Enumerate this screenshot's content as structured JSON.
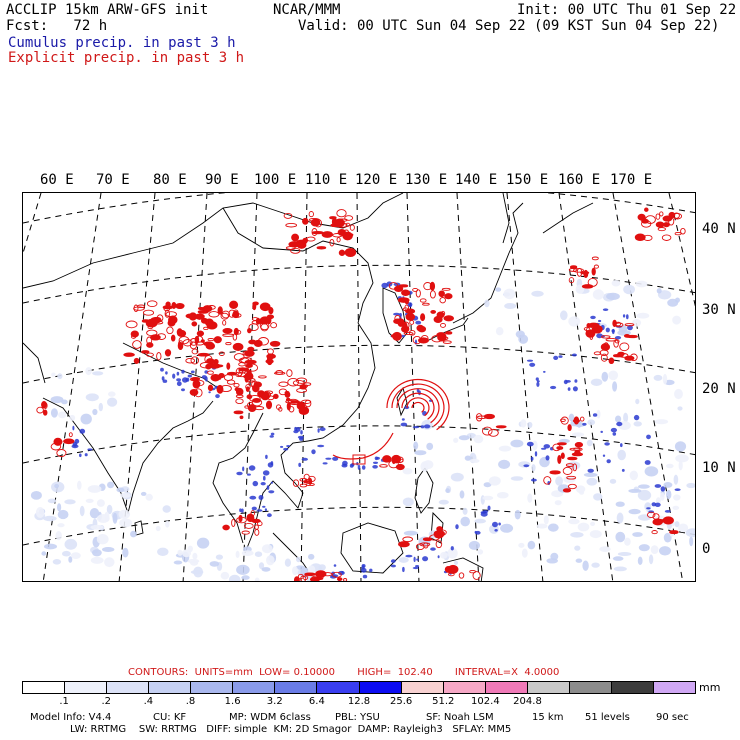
{
  "header": {
    "model": "ACCLIP 15km ARW-GFS init",
    "org": "NCAR/MMM",
    "init": "Init: 00 UTC Thu 01 Sep 22",
    "fcst": "Fcst:   72 h",
    "valid": "Valid: 00 UTC Sun 04 Sep 22 (09 KST Sun 04 Sep 22)",
    "cumulus_label": "Cumulus precip. in past 3 h",
    "explicit_label": "Explicit precip. in past 3 h"
  },
  "map": {
    "lon_labels": [
      "60 E",
      "70 E",
      "80 E",
      "90 E",
      "100 E",
      "110 E",
      "120 E",
      "130 E",
      "140 E",
      "150 E",
      "160 E",
      "170 E"
    ],
    "lat_labels": [
      "40 N",
      "30 N",
      "20 N",
      "10 N",
      "0"
    ],
    "colors": {
      "cumulus": "#2a3ad0",
      "explicit": "#e01010",
      "coast": "#000000",
      "grid": "#000000"
    }
  },
  "contours": {
    "text": "CONTOURS:  UNITS=mm  LOW= 0.10000       HIGH=  102.40       INTERVAL=X  4.0000"
  },
  "colorbar": {
    "colors": [
      "#ffffff",
      "#eef1fb",
      "#dce2f7",
      "#c6d1f3",
      "#aab8ee",
      "#8a9bea",
      "#6a7ce6",
      "#3a3ef0",
      "#0c0cf2",
      "#f8d2d2",
      "#f6a8c6",
      "#f07ab8",
      "#c8c8c8",
      "#8c8c8c",
      "#3c3c3c",
      "#d0a8f4"
    ],
    "ticks": [
      ".1",
      ".2",
      ".4",
      ".8",
      "1.6",
      "3.2",
      "6.4",
      "12.8",
      "25.6",
      "51.2",
      "102.4",
      "204.8"
    ],
    "units": "mm"
  },
  "footer": {
    "line1_a": "Model Info: V4.4",
    "line1_b": "CU: KF",
    "line1_c": "MP: WDM 6class",
    "line1_d": "PBL: YSU",
    "line1_e": "SF: Noah LSM",
    "line1_f": "15 km",
    "line1_g": "51 levels",
    "line1_h": "90 sec",
    "line2": "LW: RRTMG    SW: RRTMG   DIFF: simple  KM: 2D Smagor  DAMP: Rayleigh3   SFLAY: MM5"
  }
}
